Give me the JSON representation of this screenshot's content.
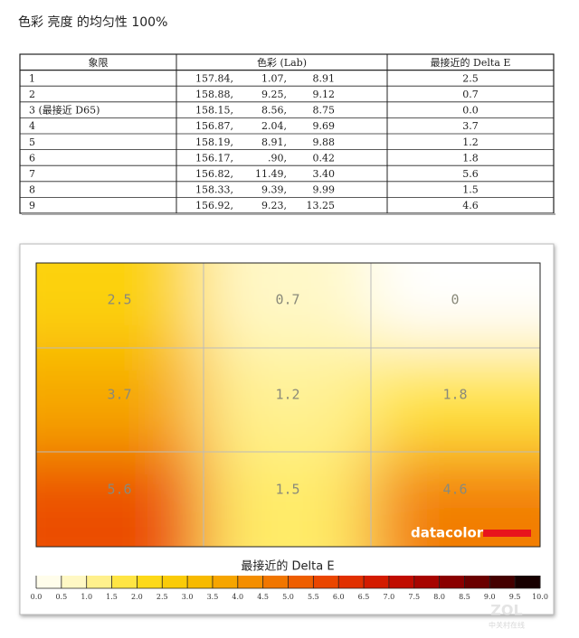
{
  "header": {
    "title": "色彩 亮度 的均匀性 100%"
  },
  "table": {
    "columns": [
      "象限",
      "色彩 (Lab)",
      "最接近的 Delta E"
    ],
    "rows": [
      {
        "quadrant": "1",
        "lab": [
          "157.84,",
          "1.07,",
          "8.91"
        ],
        "delta_e": "2.5"
      },
      {
        "quadrant": "2",
        "lab": [
          "158.88,",
          "9.25,",
          "9.12"
        ],
        "delta_e": "0.7"
      },
      {
        "quadrant": "3 (最接近 D65)",
        "lab": [
          "158.15,",
          "8.56,",
          "8.75"
        ],
        "delta_e": "0.0"
      },
      {
        "quadrant": "4",
        "lab": [
          "156.87,",
          "2.04,",
          "9.69"
        ],
        "delta_e": "3.7"
      },
      {
        "quadrant": "5",
        "lab": [
          "158.19,",
          "8.91,",
          "9.88"
        ],
        "delta_e": "1.2"
      },
      {
        "quadrant": "6",
        "lab": [
          "156.17,",
          ".90,",
          "0.42"
        ],
        "delta_e": "1.8"
      },
      {
        "quadrant": "7",
        "lab": [
          "156.82,",
          "11.49,",
          "3.40"
        ],
        "delta_e": "5.6"
      },
      {
        "quadrant": "8",
        "lab": [
          "158.33,",
          "9.39,",
          "9.99"
        ],
        "delta_e": "1.5"
      },
      {
        "quadrant": "9",
        "lab": [
          "156.92,",
          "9.23,",
          "13.25"
        ],
        "delta_e": "4.6"
      }
    ]
  },
  "heatmap": {
    "cells": [
      [
        2.5,
        0.7,
        0.0
      ],
      [
        3.7,
        1.2,
        1.8
      ],
      [
        5.6,
        1.5,
        4.6
      ]
    ],
    "logo": "datacolor",
    "colorbar": {
      "title": "最接近的 Delta E",
      "ticks": [
        {
          "value": 0,
          "label": "0.0"
        },
        {
          "value": 0.5,
          "label": "0.5"
        },
        {
          "value": 1,
          "label": "1.0"
        },
        {
          "value": 1.5,
          "label": "1.5"
        },
        {
          "value": 2,
          "label": "2.0"
        },
        {
          "value": 2.5,
          "label": "2.5"
        },
        {
          "value": 3,
          "label": "3.0"
        },
        {
          "value": 3.5,
          "label": "3.5"
        },
        {
          "value": 4,
          "label": "4.0"
        },
        {
          "value": 4.5,
          "label": "4.5"
        },
        {
          "value": 5,
          "label": "5.0"
        },
        {
          "value": 5.5,
          "label": "5.5"
        },
        {
          "value": 6,
          "label": "6.0"
        },
        {
          "value": 6.5,
          "label": "6.5"
        },
        {
          "value": 7,
          "label": "7.0"
        },
        {
          "value": 7.5,
          "label": "7.5"
        },
        {
          "value": 8,
          "label": "8.0"
        },
        {
          "value": 8.5,
          "label": "8.5"
        },
        {
          "value": 9,
          "label": "9.0"
        },
        {
          "value": 9.5,
          "label": "9.5"
        },
        {
          "value": 10,
          "label": "10.0"
        }
      ]
    }
  },
  "watermark": {
    "logo": "ZOL",
    "site": "中关村在线"
  }
}
